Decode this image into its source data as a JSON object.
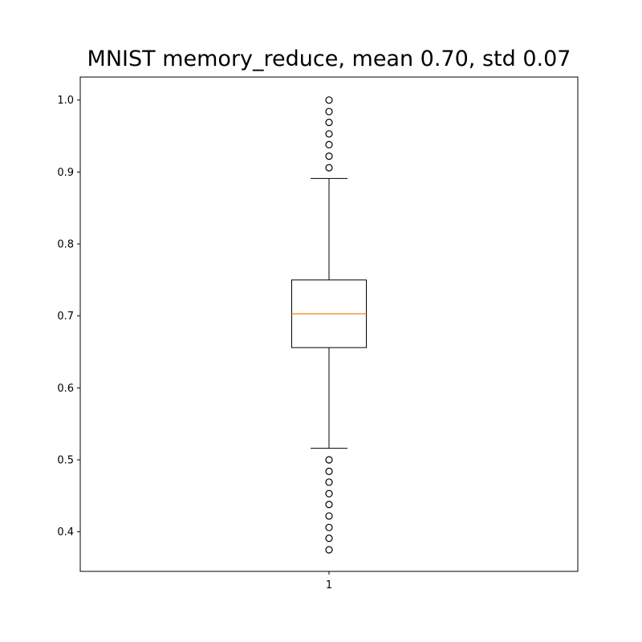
{
  "chart_data": {
    "type": "box",
    "title": "MNIST memory_reduce, mean 0.70, std 0.07",
    "xlabel": "",
    "ylabel": "",
    "categories": [
      "1"
    ],
    "ylim": [
      0.345,
      1.032
    ],
    "yticks": [
      "0.4",
      "0.5",
      "0.6",
      "0.7",
      "0.8",
      "0.9",
      "1.0"
    ],
    "grid": false,
    "box": {
      "whisker_low": 0.516,
      "q1": 0.656,
      "median": 0.703,
      "q3": 0.75,
      "whisker_high": 0.891
    },
    "outliers": [
      1.0,
      0.984,
      0.969,
      0.953,
      0.938,
      0.922,
      0.906,
      0.5,
      0.484,
      0.469,
      0.453,
      0.438,
      0.422,
      0.406,
      0.391,
      0.375
    ],
    "colors": {
      "box": "#000000",
      "median": "#ff7f0e",
      "outlier_edge": "#000000"
    }
  }
}
